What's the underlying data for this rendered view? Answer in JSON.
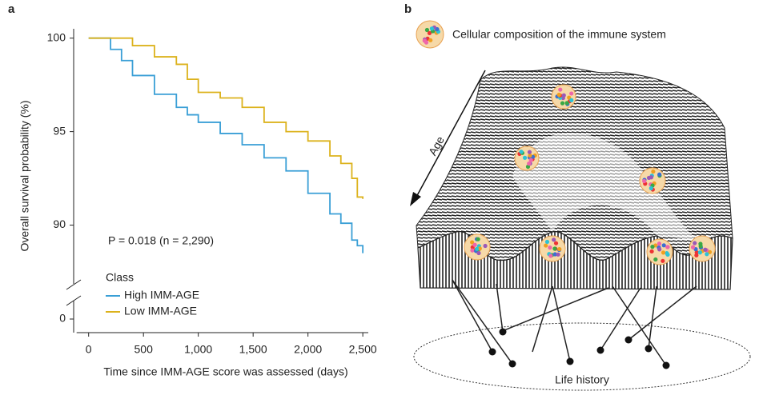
{
  "chart_data": {
    "type": "step-line",
    "panel_label": "a",
    "ylabel": "Overall survival probability (%)",
    "xlabel": "Time since IMM-AGE score was assessed (days)",
    "annotation": "P = 0.018 (n = 2,290)",
    "legend_title": "Class",
    "x": [
      0,
      100,
      200,
      300,
      400,
      600,
      800,
      900,
      1000,
      1200,
      1400,
      1600,
      1800,
      2000,
      2200,
      2300,
      2400,
      2450,
      2500
    ],
    "series": [
      {
        "name": "High IMM-AGE",
        "color": "#3a9fd6",
        "values": [
          100,
          100,
          99.4,
          98.8,
          98,
          97,
          96.3,
          95.9,
          95.5,
          94.9,
          94.3,
          93.6,
          92.9,
          91.7,
          90.6,
          90.1,
          89.2,
          88.9,
          88.5
        ]
      },
      {
        "name": "Low IMM-AGE",
        "color": "#dcb21c",
        "values": [
          100,
          100,
          100,
          100,
          99.6,
          99,
          98.6,
          97.8,
          97.1,
          96.8,
          96.3,
          95.5,
          95,
          94.5,
          93.7,
          93.3,
          92.5,
          91.5,
          91.4
        ]
      }
    ],
    "xlim": [
      -100,
      2550
    ],
    "xticks": [
      0,
      500,
      {
        "value": 1000,
        "label": "1,000"
      },
      {
        "value": 1500,
        "label": "1,500"
      },
      {
        "value": 2000,
        "label": "2,000"
      },
      {
        "value": 2500,
        "label": "2,500"
      }
    ],
    "ylim": [
      87.5,
      100.5
    ],
    "yticks": [
      0,
      90,
      95,
      100
    ],
    "axis_break": true,
    "grid": false
  },
  "diagram": {
    "panel_label": "b",
    "legend_text": "Cellular composition of the immune system",
    "arrow_label": "Age",
    "ellipse_label": "Life history"
  }
}
